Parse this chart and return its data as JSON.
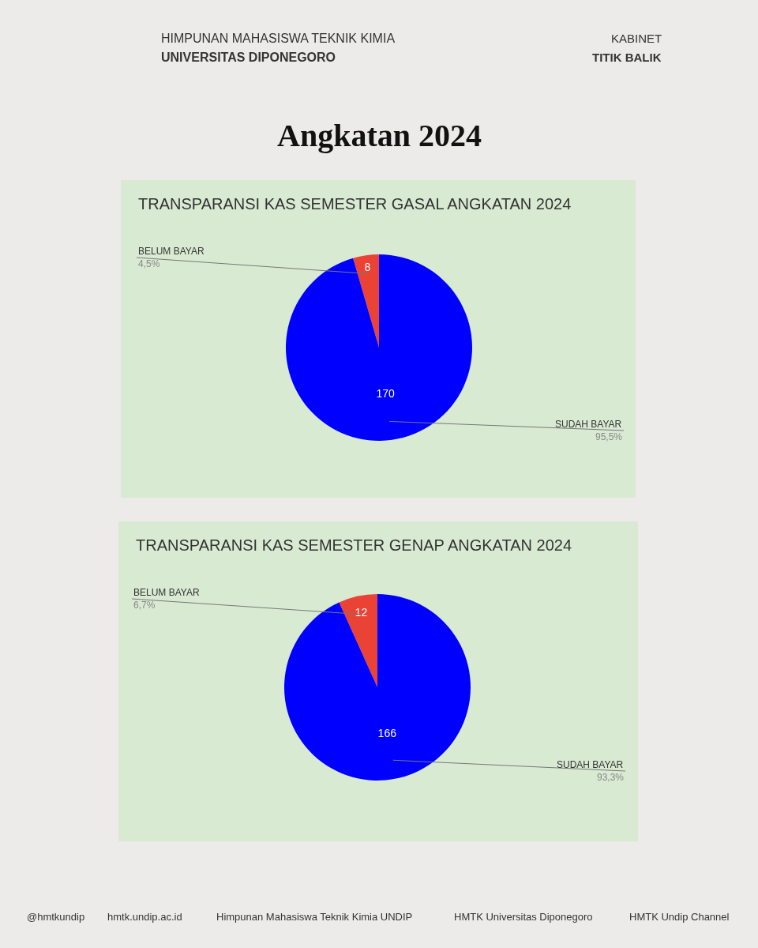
{
  "chart_data": [
    {
      "type": "pie",
      "title": "TRANSPARANSI KAS SEMESTER GASAL ANGKATAN 2024",
      "categories": [
        "BELUM BAYAR",
        "SUDAH BAYAR"
      ],
      "values": [
        8,
        170
      ],
      "colors": [
        "#ea4335",
        "#0000ff"
      ],
      "data_labels": true,
      "annotations": [
        "4,5%",
        "95,5%",
        "HIMPUNAN MAHASISWA TEKNIK KIMIA",
        "UNIVERSITAS DIPONEGORO",
        "KABINET",
        "TITIK BALIK",
        "Angkatan 2024"
      ]
    },
    {
      "type": "pie",
      "title": "TRANSPARANSI KAS SEMESTER GENAP ANGKATAN 2024",
      "categories": [
        "BELUM BAYAR",
        "SUDAH BAYAR"
      ],
      "values": [
        12,
        166
      ],
      "colors": [
        "#ea4335",
        "#0000ff"
      ],
      "data_labels": true,
      "annotations": [
        "6,7%",
        "93,3%",
        "@hmtkundip",
        "hmtk.undip.ac.id",
        "Himpunan Mahasiswa Teknik Kimia UNDIP",
        "HMTK Universitas Diponegoro",
        "HMTK Undip Channel"
      ]
    }
  ]
}
